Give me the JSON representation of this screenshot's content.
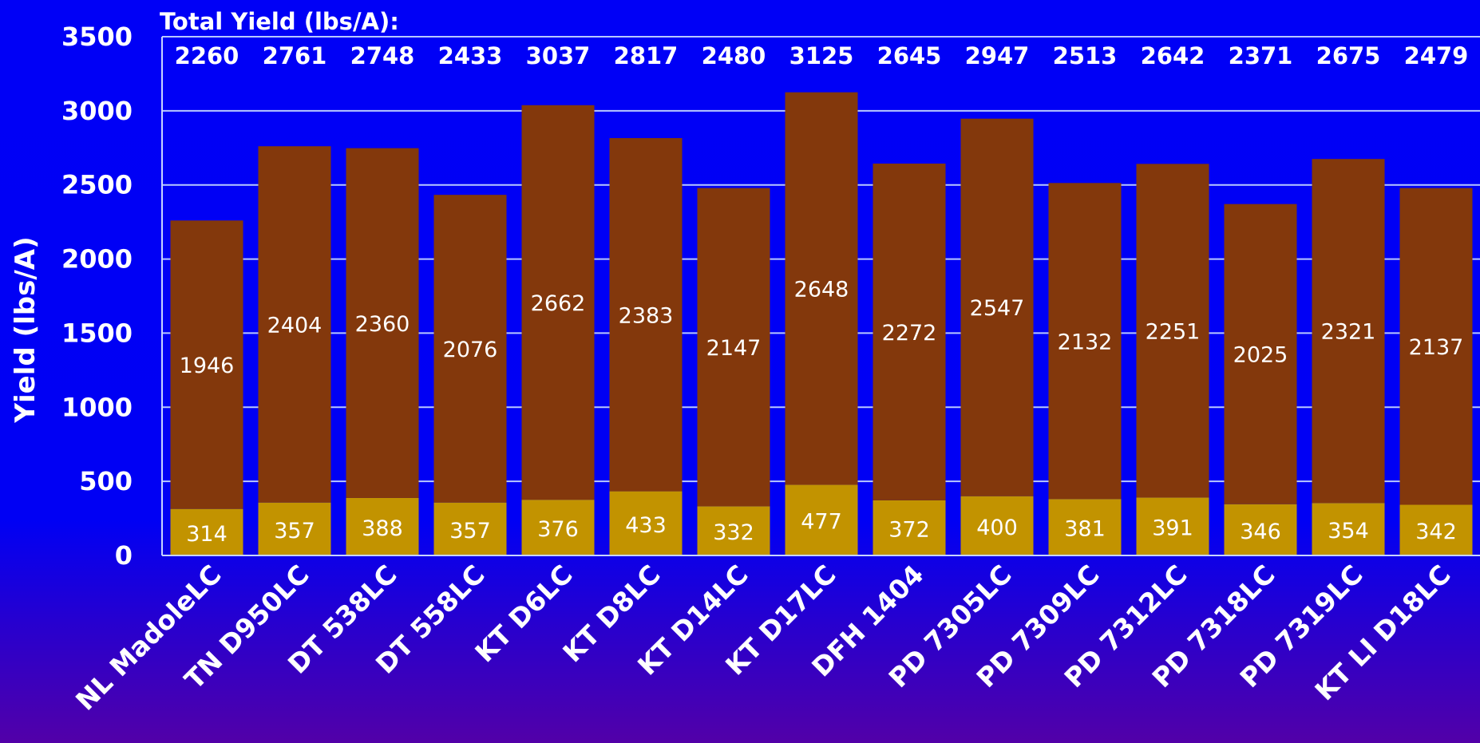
{
  "chart_data": {
    "type": "bar",
    "stacked": true,
    "title": "",
    "xlabel": "",
    "ylabel": "Yield (lbs/A)",
    "ylim": [
      0,
      3500
    ],
    "yticks": [
      0,
      500,
      1000,
      1500,
      2000,
      2500,
      3000,
      3500
    ],
    "grid": true,
    "totals_label": "Total Yield (lbs/A):",
    "categories": [
      "NL MadoleLC",
      "TN D950LC",
      "DT 538LC",
      "DT 558LC",
      "KT D6LC",
      "KT D8LC",
      "KT D14LC",
      "KT D17LC",
      "DFH 1404",
      "PD 7305LC",
      "PD 7309LC",
      "PD 7312LC",
      "PD 7318LC",
      "PD 7319LC",
      "KT LI D18LC"
    ],
    "totals": [
      2260,
      2761,
      2748,
      2433,
      3037,
      2817,
      2480,
      3125,
      2645,
      2947,
      2513,
      2642,
      2371,
      2675,
      2479
    ],
    "series": [
      {
        "color": "#c29300",
        "values": [
          314,
          357,
          388,
          357,
          376,
          433,
          332,
          477,
          372,
          400,
          381,
          391,
          346,
          354,
          342
        ]
      },
      {
        "color": "#83380c",
        "values": [
          1946,
          2404,
          2360,
          2076,
          2662,
          2383,
          2147,
          2648,
          2272,
          2547,
          2132,
          2251,
          2025,
          2321,
          2137
        ]
      }
    ]
  }
}
